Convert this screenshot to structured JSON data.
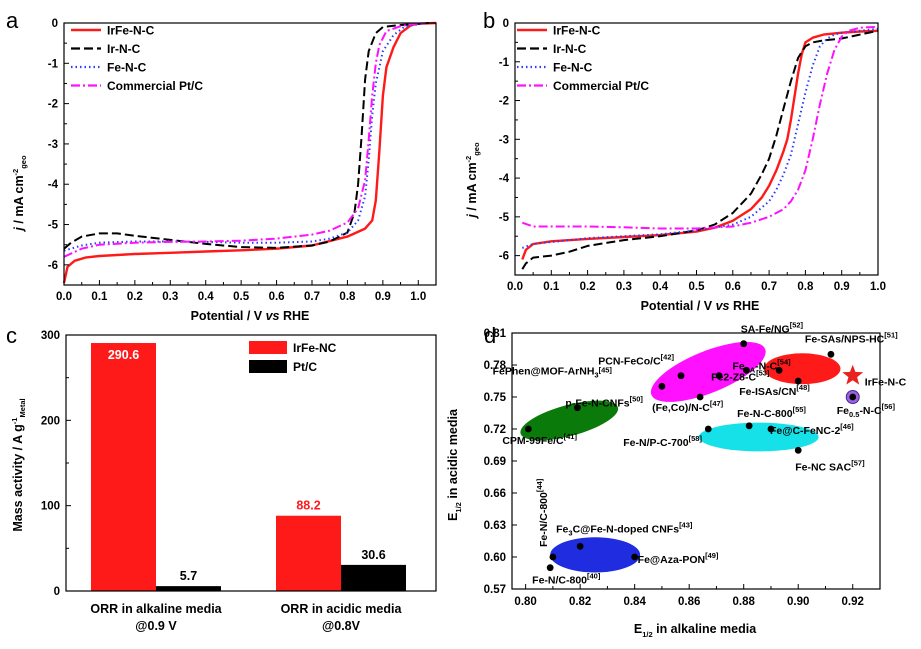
{
  "chart_data": [
    {
      "panel": "a",
      "type": "line",
      "xlabel": "Potential / V vs RHE",
      "ylabel": "j / mA cm-2geo",
      "xlim": [
        0.0,
        1.05
      ],
      "ylim": [
        -6.5,
        0
      ],
      "xticks": [
        "0.0",
        "0.1",
        "0.2",
        "0.3",
        "0.4",
        "0.5",
        "0.6",
        "0.7",
        "0.8",
        "0.9",
        "1.0"
      ],
      "yticks": [
        "0",
        "-1",
        "-2",
        "-3",
        "-4",
        "-5",
        "-6"
      ],
      "legend_position": "top-left",
      "series": [
        {
          "name": "IrFe-N-C",
          "color": "#ff1a1a",
          "dash": "solid",
          "x": [
            0.0,
            0.01,
            0.03,
            0.06,
            0.1,
            0.2,
            0.3,
            0.4,
            0.5,
            0.6,
            0.7,
            0.8,
            0.85,
            0.87,
            0.88,
            0.89,
            0.9,
            0.91,
            0.93,
            0.95,
            0.98,
            1.0,
            1.02,
            1.05
          ],
          "y": [
            -6.45,
            -6.05,
            -5.9,
            -5.82,
            -5.78,
            -5.73,
            -5.7,
            -5.67,
            -5.64,
            -5.6,
            -5.52,
            -5.3,
            -5.1,
            -4.9,
            -4.4,
            -3.2,
            -1.8,
            -1.1,
            -0.6,
            -0.25,
            -0.05,
            -0.02,
            -0.01,
            0
          ]
        },
        {
          "name": "Ir-N-C",
          "color": "#000000",
          "dash": "long",
          "x": [
            0.0,
            0.02,
            0.05,
            0.1,
            0.15,
            0.2,
            0.3,
            0.4,
            0.5,
            0.6,
            0.7,
            0.75,
            0.8,
            0.82,
            0.83,
            0.84,
            0.85,
            0.86,
            0.88,
            0.9,
            0.95,
            1.0,
            1.03
          ],
          "y": [
            -5.6,
            -5.45,
            -5.3,
            -5.22,
            -5.22,
            -5.28,
            -5.38,
            -5.48,
            -5.56,
            -5.58,
            -5.52,
            -5.42,
            -5.2,
            -4.7,
            -4.0,
            -2.8,
            -1.4,
            -0.7,
            -0.25,
            -0.1,
            -0.05,
            -0.02,
            0
          ]
        },
        {
          "name": "Fe-N-C",
          "color": "#2b3cff",
          "dash": "dot",
          "x": [
            0.0,
            0.05,
            0.1,
            0.2,
            0.3,
            0.4,
            0.5,
            0.6,
            0.7,
            0.75,
            0.8,
            0.83,
            0.85,
            0.86,
            0.87,
            0.88,
            0.9,
            0.93,
            0.96,
            1.0,
            1.03
          ],
          "y": [
            -5.65,
            -5.52,
            -5.45,
            -5.42,
            -5.42,
            -5.43,
            -5.45,
            -5.45,
            -5.42,
            -5.35,
            -5.2,
            -4.9,
            -4.3,
            -3.4,
            -2.3,
            -1.5,
            -0.7,
            -0.3,
            -0.1,
            -0.03,
            0
          ]
        },
        {
          "name": "Commercial Pt/C",
          "color": "#ff10ff",
          "dash": "dashdot",
          "x": [
            0.0,
            0.05,
            0.1,
            0.2,
            0.3,
            0.4,
            0.5,
            0.6,
            0.7,
            0.75,
            0.8,
            0.83,
            0.85,
            0.86,
            0.87,
            0.88,
            0.89,
            0.91,
            0.95,
            0.98,
            1.02
          ],
          "y": [
            -5.8,
            -5.6,
            -5.5,
            -5.45,
            -5.43,
            -5.42,
            -5.4,
            -5.35,
            -5.25,
            -5.15,
            -4.95,
            -4.6,
            -3.9,
            -2.9,
            -1.8,
            -1.0,
            -0.55,
            -0.2,
            -0.08,
            -0.03,
            0
          ]
        }
      ]
    },
    {
      "panel": "b",
      "type": "line",
      "xlabel": "Potential / V vs RHE",
      "ylabel": "j / mA cm-2geo",
      "xlim": [
        0.0,
        1.0
      ],
      "ylim": [
        -6.5,
        0
      ],
      "xticks": [
        "0.0",
        "0.1",
        "0.2",
        "0.3",
        "0.4",
        "0.5",
        "0.6",
        "0.7",
        "0.8",
        "0.9",
        "1.0"
      ],
      "yticks": [
        "0",
        "-1",
        "-2",
        "-3",
        "-4",
        "-5",
        "-6"
      ],
      "legend_position": "top-left",
      "series": [
        {
          "name": "IrFe-N-C",
          "color": "#ff1a1a",
          "dash": "solid",
          "x": [
            0.02,
            0.03,
            0.05,
            0.1,
            0.2,
            0.3,
            0.4,
            0.5,
            0.55,
            0.6,
            0.65,
            0.68,
            0.7,
            0.72,
            0.74,
            0.75,
            0.76,
            0.77,
            0.78,
            0.79,
            0.8,
            0.82,
            0.85,
            0.9,
            0.95,
            1.0
          ],
          "y": [
            -6.1,
            -5.85,
            -5.7,
            -5.63,
            -5.57,
            -5.52,
            -5.47,
            -5.38,
            -5.28,
            -5.1,
            -4.8,
            -4.5,
            -4.2,
            -3.8,
            -3.3,
            -3.0,
            -2.5,
            -1.9,
            -1.3,
            -0.8,
            -0.5,
            -0.38,
            -0.3,
            -0.25,
            -0.22,
            -0.2
          ]
        },
        {
          "name": "Ir-N-C",
          "color": "#000000",
          "dash": "long",
          "x": [
            0.02,
            0.03,
            0.05,
            0.1,
            0.15,
            0.2,
            0.3,
            0.4,
            0.5,
            0.55,
            0.6,
            0.65,
            0.68,
            0.7,
            0.72,
            0.74,
            0.76,
            0.78,
            0.8,
            0.82,
            0.85,
            0.9,
            0.95,
            1.0
          ],
          "y": [
            -6.35,
            -6.2,
            -6.05,
            -6.0,
            -5.9,
            -5.75,
            -5.6,
            -5.5,
            -5.35,
            -5.2,
            -4.9,
            -4.4,
            -3.9,
            -3.5,
            -2.9,
            -2.2,
            -1.5,
            -0.9,
            -0.6,
            -0.5,
            -0.45,
            -0.4,
            -0.3,
            -0.2
          ]
        },
        {
          "name": "Fe-N-C",
          "color": "#2b3cff",
          "dash": "dot",
          "x": [
            0.02,
            0.05,
            0.1,
            0.2,
            0.3,
            0.4,
            0.5,
            0.6,
            0.65,
            0.7,
            0.72,
            0.74,
            0.76,
            0.78,
            0.8,
            0.82,
            0.84,
            0.86,
            0.88,
            0.9,
            0.95,
            1.0
          ],
          "y": [
            -5.8,
            -5.7,
            -5.65,
            -5.55,
            -5.5,
            -5.45,
            -5.35,
            -5.2,
            -5.0,
            -4.6,
            -4.3,
            -3.9,
            -3.4,
            -2.6,
            -1.8,
            -1.1,
            -0.6,
            -0.4,
            -0.3,
            -0.25,
            -0.2,
            -0.15
          ]
        },
        {
          "name": "Commercial Pt/C",
          "color": "#ff10ff",
          "dash": "dashdot",
          "x": [
            0.02,
            0.05,
            0.1,
            0.2,
            0.3,
            0.4,
            0.5,
            0.6,
            0.65,
            0.7,
            0.74,
            0.76,
            0.78,
            0.8,
            0.82,
            0.84,
            0.86,
            0.88,
            0.9,
            0.92,
            0.95,
            1.0
          ],
          "y": [
            -5.15,
            -5.25,
            -5.25,
            -5.25,
            -5.27,
            -5.3,
            -5.3,
            -5.25,
            -5.15,
            -5.0,
            -4.8,
            -4.6,
            -4.3,
            -3.8,
            -3.0,
            -2.1,
            -1.3,
            -0.7,
            -0.35,
            -0.2,
            -0.12,
            -0.1
          ]
        }
      ]
    },
    {
      "panel": "c",
      "type": "bar",
      "ylabel": "Mass activity / A g-1Metal",
      "ylim": [
        0,
        300
      ],
      "yticks": [
        "0",
        "100",
        "200",
        "300"
      ],
      "categories": [
        "ORR in alkaline media @0.9 V",
        "ORR in acidic media @0.8V"
      ],
      "category_lines": [
        [
          "ORR in alkaline media",
          "@0.9 V"
        ],
        [
          "ORR in acidic media",
          "@0.8V"
        ]
      ],
      "legend_position": "top-center",
      "series": [
        {
          "name": "IrFe-NC",
          "color": "#ff1a1a",
          "values": [
            290.6,
            88.2
          ],
          "labels": [
            "290.6",
            "88.2"
          ]
        },
        {
          "name": "Pt/C",
          "color": "#000000",
          "values": [
            5.7,
            30.6
          ],
          "labels": [
            "5.7",
            "30.6"
          ]
        }
      ]
    },
    {
      "panel": "d",
      "type": "scatter",
      "xlabel": "E1/2 in alkaline media",
      "ylabel": "E1/2 in acidic media",
      "xlim": [
        0.795,
        0.93
      ],
      "ylim": [
        0.57,
        0.81
      ],
      "xticks": [
        "0.80",
        "0.82",
        "0.84",
        "0.86",
        "0.88",
        "0.90",
        "0.92"
      ],
      "yticks": [
        "0.81",
        "0.78",
        "0.75",
        "0.72",
        "0.69",
        "0.66",
        "0.63",
        "0.60",
        "0.57"
      ],
      "clusters": [
        {
          "color": "#0a7a0a",
          "cx": 0.816,
          "cy": 0.728,
          "rx": 0.0185,
          "ry": 0.0145,
          "angle": 15
        },
        {
          "color": "#ff10ff",
          "cx": 0.867,
          "cy": 0.7735,
          "rx": 0.0225,
          "ry": 0.0195,
          "angle": 22
        },
        {
          "color": "#ff1a1a",
          "cx": 0.9015,
          "cy": 0.7765,
          "rx": 0.014,
          "ry": 0.0145,
          "angle": 0
        },
        {
          "color": "#16e0e8",
          "cx": 0.8855,
          "cy": 0.7125,
          "rx": 0.022,
          "ry": 0.0135,
          "angle": 0
        },
        {
          "color": "#1f2ce0",
          "cx": 0.8255,
          "cy": 0.602,
          "rx": 0.0165,
          "ry": 0.0165,
          "angle": 0
        }
      ],
      "points": [
        {
          "x": 0.801,
          "y": 0.72,
          "label": "CPM-99Fe/C",
          "ref": "[41]"
        },
        {
          "x": 0.819,
          "y": 0.74,
          "label": "p-Fe-N-CNFs",
          "ref": "[50]"
        },
        {
          "x": 0.85,
          "y": 0.76,
          "label": "FePhen@MOF-ArNH3",
          "ref": "[45]"
        },
        {
          "x": 0.857,
          "y": 0.77,
          "label": "PCN-FeCo/C",
          "ref": "[42]"
        },
        {
          "x": 0.864,
          "y": 0.75,
          "label": "(Fe,Co)/N-C",
          "ref": "[47]"
        },
        {
          "x": 0.871,
          "y": 0.77,
          "label": "Fe2-Z8-C",
          "ref": "[53]"
        },
        {
          "x": 0.88,
          "y": 0.8,
          "label": "SA-Fe/NG",
          "ref": "[52]"
        },
        {
          "x": 0.881,
          "y": 0.775,
          "label": "FeSA-N-C",
          "ref": "[54]"
        },
        {
          "x": 0.893,
          "y": 0.775,
          "label": "",
          "ref": ""
        },
        {
          "x": 0.9,
          "y": 0.765,
          "label": "Fe-ISAs/CN",
          "ref": "[48]"
        },
        {
          "x": 0.912,
          "y": 0.79,
          "label": "Fe-SAs/NPS-HC",
          "ref": "[51]"
        },
        {
          "x": 0.92,
          "y": 0.75,
          "label": "Fe0.5-N-C",
          "ref": "[56]",
          "highlight": true
        },
        {
          "x": 0.867,
          "y": 0.72,
          "label": "Fe-N/P-C-700",
          "ref": "[58]"
        },
        {
          "x": 0.882,
          "y": 0.723,
          "label": "Fe-N-C-800",
          "ref": "[55]"
        },
        {
          "x": 0.89,
          "y": 0.72,
          "label": "Fe@C-FeNC-2",
          "ref": "[46]"
        },
        {
          "x": 0.9,
          "y": 0.7,
          "label": "Fe-NC SAC",
          "ref": "[57]"
        },
        {
          "x": 0.809,
          "y": 0.59,
          "label": "Fe-N/C-800",
          "ref": "[40]"
        },
        {
          "x": 0.81,
          "y": 0.6,
          "label": "Fe-N/C-800",
          "ref": "[44]"
        },
        {
          "x": 0.82,
          "y": 0.61,
          "label": "Fe3C@Fe-N-doped CNFs",
          "ref": "[43]"
        },
        {
          "x": 0.84,
          "y": 0.6,
          "label": "Fe@Aza-PON",
          "ref": "[49]"
        }
      ],
      "star": {
        "x": 0.92,
        "y": 0.77,
        "label": "IrFe-N-C",
        "color": "#e8221e"
      }
    }
  ]
}
